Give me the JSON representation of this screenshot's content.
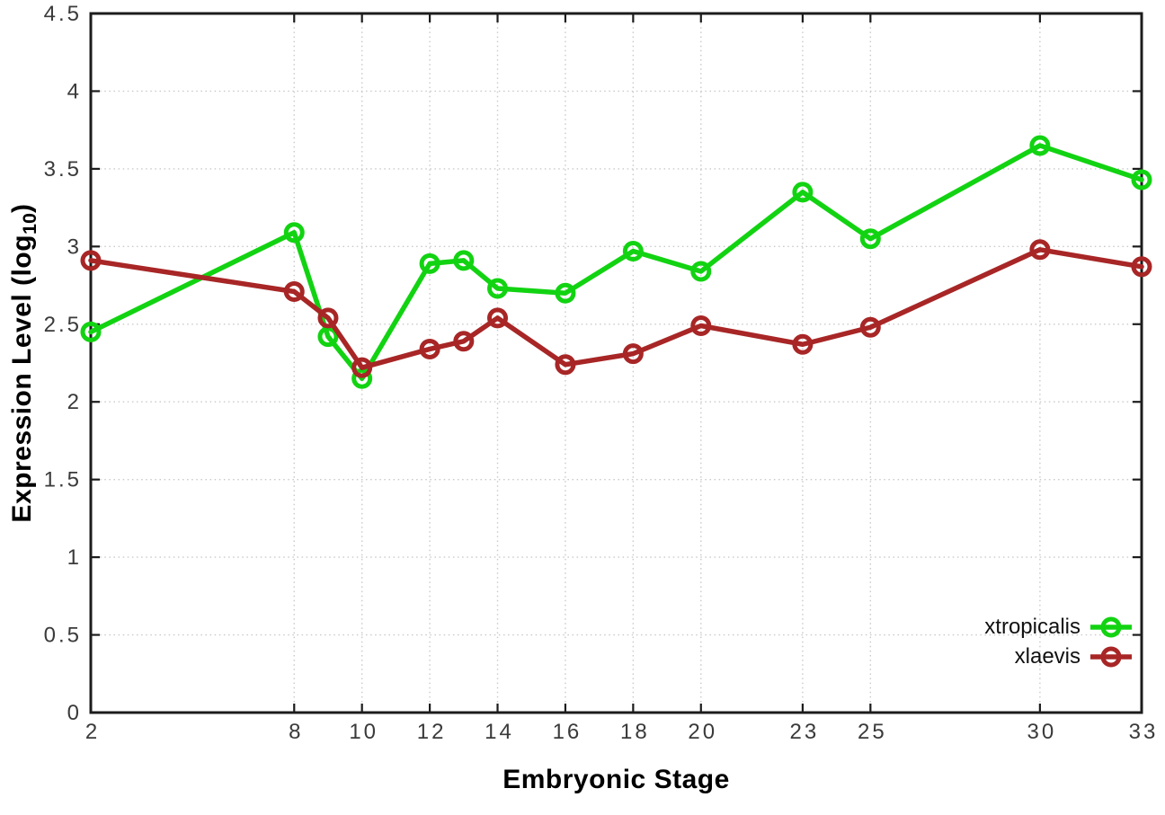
{
  "figure": {
    "background": "#ffffff",
    "border_color": "#1c1c1c",
    "grid_color": "#c9c9c9",
    "tick_label_color": "#3a3a3a"
  },
  "chart_data": {
    "type": "line",
    "title": "",
    "xlabel": "Embryonic Stage",
    "ylabel": "Expression Level (log10)",
    "ylabel_parts": {
      "prefix": "Expression Level (log",
      "subscript": "10",
      "suffix": ")"
    },
    "x": [
      2,
      8,
      9,
      10,
      12,
      13,
      14,
      16,
      18,
      20,
      23,
      25,
      30,
      33
    ],
    "series": [
      {
        "name": "xtropicalis",
        "color": "#12d312",
        "values": [
          2.45,
          3.09,
          2.42,
          2.15,
          2.89,
          2.91,
          2.73,
          2.7,
          2.97,
          2.84,
          3.35,
          3.05,
          3.65,
          3.43
        ]
      },
      {
        "name": "xlaevis",
        "color": "#a82626",
        "values": [
          2.91,
          2.71,
          2.54,
          2.22,
          2.34,
          2.39,
          2.54,
          2.24,
          2.31,
          2.49,
          2.37,
          2.48,
          2.98,
          2.87
        ]
      }
    ],
    "xlim": [
      2,
      33
    ],
    "ylim": [
      0,
      4.5
    ],
    "xticks": [
      2,
      8,
      10,
      12,
      14,
      16,
      18,
      20,
      23,
      25,
      30,
      33
    ],
    "xtick_labels": [
      "2",
      "8",
      "10",
      "12",
      "14",
      "16",
      "18",
      "20",
      "23",
      "25",
      "30",
      "33"
    ],
    "yticks": [
      0,
      0.5,
      1,
      1.5,
      2,
      2.5,
      3,
      3.5,
      4,
      4.5
    ],
    "ytick_labels": [
      "0",
      "0.5",
      "1",
      "1.5",
      "2",
      "2.5",
      "3",
      "3.5",
      "4",
      "4.5"
    ],
    "grid": true,
    "legend_position": "bottom-right"
  }
}
